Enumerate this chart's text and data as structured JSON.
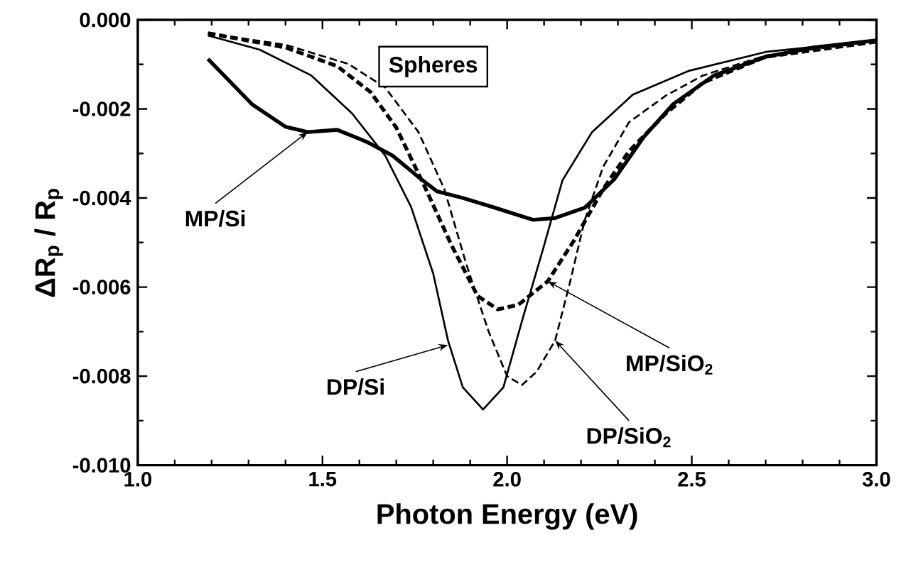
{
  "chart_data": {
    "type": "line",
    "xlabel": "Photon Energy (eV)",
    "ylabel": "ΔR$_{p}$ / R$_{p}$",
    "xlim": [
      1.0,
      3.0
    ],
    "ylim": [
      -0.01,
      0.0
    ],
    "xticks": [
      {
        "value": 1.0,
        "label": "1.0"
      },
      1.5,
      {
        "value": 2.0,
        "label": "2.0"
      },
      2.5,
      {
        "value": 3.0,
        "label": "3.0"
      }
    ],
    "yticks": [
      {
        "value": -0.01,
        "label": "-0.010"
      },
      {
        "value": -0.008,
        "label": "-0.008"
      },
      {
        "value": -0.006,
        "label": "-0.006"
      },
      {
        "value": -0.004,
        "label": "-0.004"
      },
      {
        "value": -0.002,
        "label": "-0.002"
      },
      {
        "value": 0.0,
        "label": "0.000"
      }
    ],
    "grid": false,
    "marker": "none",
    "annotations": [
      "Spheres",
      {
        "text": "MP/Si",
        "x": 1.46,
        "y": -0.00252
      },
      {
        "text": "DP/Si",
        "x": 1.84,
        "y": -0.0073
      },
      {
        "text": "MP/SiO$_{2}$",
        "x": 2.11,
        "y": -0.00587
      },
      {
        "text": "DP/SiO$_{2}$",
        "x": 2.13,
        "y": -0.0072
      }
    ],
    "series": [
      {
        "color": "#000000",
        "line_style": "solid",
        "x": [
          1.19,
          1.31,
          1.4,
          1.46,
          1.54,
          1.62,
          1.69,
          1.76,
          1.81,
          1.88,
          1.96,
          2.07,
          2.13,
          2.21,
          2.29,
          2.37,
          2.45,
          2.56,
          2.7,
          2.83,
          3.0
        ],
        "values": [
          -0.00088,
          -0.0019,
          -0.0024,
          -0.00252,
          -0.00247,
          -0.00274,
          -0.00305,
          -0.00353,
          -0.00385,
          -0.004,
          -0.0042,
          -0.00449,
          -0.00445,
          -0.00422,
          -0.00358,
          -0.00263,
          -0.00189,
          -0.00125,
          -0.00083,
          -0.00062,
          -0.00046
        ]
      },
      {
        "color": "#000000",
        "line_style": "solid",
        "x": [
          1.19,
          1.33,
          1.47,
          1.58,
          1.67,
          1.74,
          1.8,
          1.84,
          1.88,
          1.935,
          1.99,
          2.04,
          2.1,
          2.15,
          2.23,
          2.34,
          2.49,
          2.7,
          3.0
        ],
        "values": [
          -0.00035,
          -0.00067,
          -0.00125,
          -0.0021,
          -0.00305,
          -0.0042,
          -0.0057,
          -0.0072,
          -0.00825,
          -0.00875,
          -0.00825,
          -0.00677,
          -0.00507,
          -0.0036,
          -0.00252,
          -0.00168,
          -0.00115,
          -0.00072,
          -0.00046
        ]
      },
      {
        "color": "#000000",
        "line_style": "dashed",
        "x": [
          1.19,
          1.4,
          1.54,
          1.63,
          1.7,
          1.78,
          1.85,
          1.92,
          1.975,
          2.03,
          2.11,
          2.18,
          2.26,
          2.33,
          2.43,
          2.53,
          2.7,
          3.0
        ],
        "values": [
          -0.0003,
          -0.00062,
          -0.00104,
          -0.00162,
          -0.00242,
          -0.0038,
          -0.00507,
          -0.0062,
          -0.0065,
          -0.0064,
          -0.00587,
          -0.00497,
          -0.0038,
          -0.00295,
          -0.0021,
          -0.00141,
          -0.00083,
          -0.00049
        ]
      },
      {
        "color": "#000000",
        "line_style": "dashed",
        "x": [
          1.19,
          1.4,
          1.57,
          1.67,
          1.76,
          1.83,
          1.89,
          1.95,
          2.0,
          2.04,
          2.08,
          2.13,
          2.17,
          2.21,
          2.26,
          2.33,
          2.43,
          2.53,
          2.7,
          3.0
        ],
        "values": [
          -0.0003,
          -0.00056,
          -0.00099,
          -0.00152,
          -0.00252,
          -0.0038,
          -0.0055,
          -0.007,
          -0.008,
          -0.0082,
          -0.0079,
          -0.0072,
          -0.0059,
          -0.0045,
          -0.0033,
          -0.0023,
          -0.0017,
          -0.00125,
          -0.0008,
          -0.00048
        ]
      }
    ]
  }
}
